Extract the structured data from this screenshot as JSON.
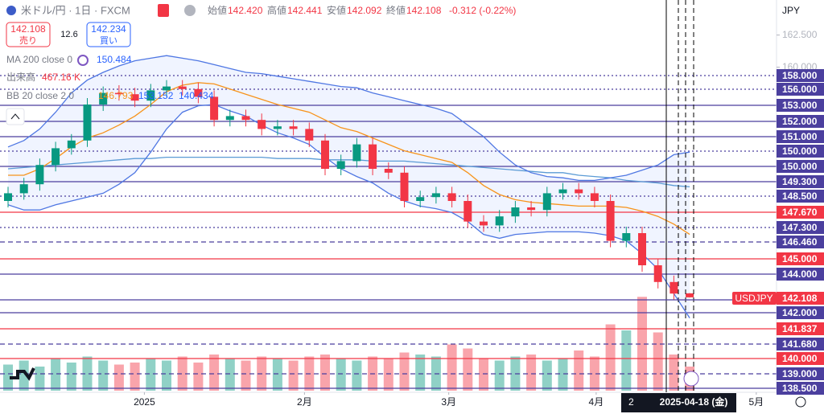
{
  "header": {
    "symbol": "米ドル/円 · 1日 · FXCM",
    "open_label": "始値",
    "open": "142.420",
    "high_label": "高値",
    "high": "142.441",
    "low_label": "安値",
    "low": "142.092",
    "close_label": "終値",
    "close": "142.108",
    "change": "-0.312 (-0.22%)"
  },
  "trade": {
    "sell_price": "142.108",
    "sell": "売り",
    "spread": "12.6",
    "buy_price": "142.234",
    "buy": "買い"
  },
  "legend": {
    "ma": "MA 200 close 0",
    "ma_value": "150.484",
    "vol": "出来高",
    "vol_value": "467.16 K",
    "bb": "BB 20 close 2 0",
    "bb_basis": "146.793",
    "bb_upper": "153.152",
    "bb_lower": "140.434"
  },
  "currency": "JPY",
  "price_lines": [
    {
      "label": "158.000",
      "color": "#4b3f9e",
      "style": "dotted"
    },
    {
      "label": "156.000",
      "color": "#4b3f9e",
      "style": "dotted"
    },
    {
      "label": "153.000",
      "color": "#4b3f9e",
      "style": "solid"
    },
    {
      "label": "152.000",
      "color": "#4b3f9e",
      "style": "solid"
    },
    {
      "label": "151.000",
      "color": "#4b3f9e",
      "style": "solid"
    },
    {
      "label": "150.000",
      "color": "#4b3f9e",
      "style": "dotted"
    },
    {
      "label": "150.000",
      "color": "#4b3f9e",
      "style": "solid"
    },
    {
      "label": "149.300",
      "color": "#4b3f9e",
      "style": "solid"
    },
    {
      "label": "148.500",
      "color": "#4b3f9e",
      "style": "dotted"
    },
    {
      "label": "147.670",
      "color": "#f23645",
      "style": "solid"
    },
    {
      "label": "147.300",
      "color": "#4b3f9e",
      "style": "dotted"
    },
    {
      "label": "146.460",
      "color": "#4b3f9e",
      "style": "dashed"
    },
    {
      "label": "145.000",
      "color": "#f23645",
      "style": "solid"
    },
    {
      "label": "144.000",
      "color": "#4b3f9e",
      "style": "solid"
    },
    {
      "label": "142.000",
      "color": "#4b3f9e",
      "style": "solid"
    },
    {
      "label": "141.837",
      "color": "#f23645",
      "style": "solid"
    },
    {
      "label": "141.680",
      "color": "#4b3f9e",
      "style": "dashed"
    },
    {
      "label": "140.000",
      "color": "#f23645",
      "style": "solid"
    },
    {
      "label": "139.000",
      "color": "#4b3f9e",
      "style": "dashed"
    },
    {
      "label": "138.500",
      "color": "#4b3f9e",
      "style": "solid"
    }
  ],
  "last_price": {
    "name": "USDJPY",
    "label": "142.108",
    "color": "#f23645"
  },
  "chart_data": {
    "type": "candlestick",
    "categories": [
      null,
      null,
      null,
      null,
      null,
      null,
      null,
      null,
      null,
      null,
      null,
      null,
      null,
      null,
      null,
      null,
      null,
      null,
      null,
      null,
      null,
      null,
      null,
      null,
      null,
      null,
      null,
      null,
      null,
      null,
      null,
      null,
      null,
      null,
      null,
      null,
      null,
      null,
      null,
      null,
      null,
      null,
      null,
      null
    ],
    "open": [
      149.6,
      150.2,
      150.9,
      152.4,
      153.7,
      154.3,
      157.1,
      158.0,
      157.9,
      157.4,
      158.2,
      158.5,
      158.3,
      157.7,
      155.9,
      156.2,
      155.9,
      155.2,
      155.4,
      155.2,
      154.3,
      152.1,
      152.7,
      154.0,
      152.1,
      151.8,
      149.6,
      149.9,
      150.2,
      149.6,
      148.0,
      147.7,
      148.4,
      149.1,
      148.9,
      150.2,
      150.5,
      150.2,
      149.6,
      146.5,
      147.1,
      144.6,
      143.3,
      142.42
    ],
    "high": [
      150.7,
      151.4,
      152.9,
      154.2,
      154.8,
      157.6,
      158.5,
      158.6,
      158.4,
      158.7,
      159.0,
      159.0,
      158.8,
      158.2,
      156.7,
      156.7,
      156.4,
      155.9,
      155.9,
      155.7,
      154.8,
      153.2,
      154.5,
      154.5,
      152.6,
      152.3,
      150.4,
      150.7,
      150.7,
      150.1,
      148.5,
      148.9,
      149.6,
      149.6,
      150.7,
      151.0,
      151.0,
      150.7,
      150.1,
      147.6,
      147.6,
      145.1,
      143.8,
      142.441
    ],
    "low": [
      149.1,
      149.7,
      150.4,
      151.9,
      153.2,
      153.8,
      156.6,
      157.4,
      156.9,
      156.9,
      157.7,
      157.8,
      157.2,
      155.4,
      155.4,
      155.4,
      154.7,
      154.7,
      154.7,
      153.8,
      151.6,
      151.6,
      152.2,
      151.6,
      151.3,
      149.1,
      149.1,
      149.4,
      149.1,
      147.5,
      147.2,
      147.2,
      147.9,
      148.4,
      148.4,
      149.7,
      149.7,
      149.1,
      146.0,
      146.0,
      144.1,
      142.8,
      141.9,
      142.092
    ],
    "close": [
      150.2,
      150.9,
      152.4,
      153.7,
      154.3,
      157.1,
      158.0,
      157.9,
      157.4,
      158.2,
      158.5,
      158.3,
      157.7,
      155.9,
      156.2,
      155.9,
      155.2,
      155.4,
      155.2,
      154.3,
      152.1,
      152.7,
      154.0,
      152.1,
      151.8,
      149.6,
      149.9,
      150.2,
      149.6,
      148.0,
      147.7,
      148.4,
      149.1,
      148.9,
      150.2,
      150.5,
      150.2,
      149.6,
      146.5,
      147.1,
      144.6,
      143.3,
      142.4,
      142.108
    ],
    "volume": [
      130,
      150,
      120,
      160,
      140,
      170,
      150,
      130,
      140,
      160,
      150,
      170,
      140,
      180,
      160,
      150,
      170,
      160,
      150,
      170,
      180,
      160,
      150,
      170,
      160,
      190,
      180,
      170,
      230,
      210,
      160,
      150,
      170,
      180,
      150,
      160,
      200,
      170,
      330,
      300,
      467,
      290,
      180,
      120
    ],
    "up_color": "#089981",
    "down_color": "#f23645",
    "band_fill": "rgba(41,98,255,0.07)",
    "lines": [
      {
        "color": "#5b9bd5",
        "values": [
          152.1,
          152.2,
          152.3,
          152.4,
          152.5,
          152.6,
          152.7,
          152.8,
          152.9,
          152.9,
          153.0,
          153.0,
          153.0,
          153.0,
          153.0,
          153.0,
          153.0,
          152.9,
          152.9,
          152.9,
          152.8,
          152.8,
          152.8,
          152.7,
          152.7,
          152.7,
          152.6,
          152.5,
          152.4,
          152.3,
          152.2,
          152.1,
          152.0,
          151.9,
          151.8,
          151.8,
          151.6,
          151.5,
          151.4,
          151.2,
          151.1,
          151.0,
          150.8,
          150.7
        ]
      },
      {
        "color": "#f7931a",
        "values": [
          151.6,
          151.6,
          152.1,
          152.9,
          153.8,
          154.5,
          154.9,
          155.5,
          156.2,
          157.1,
          158.1,
          158.6,
          158.8,
          158.7,
          158.3,
          157.9,
          157.5,
          157.1,
          156.8,
          156.5,
          155.9,
          155.3,
          155.0,
          154.5,
          154.0,
          153.5,
          153.2,
          152.9,
          152.6,
          151.8,
          150.8,
          150.1,
          149.7,
          149.5,
          149.4,
          149.3,
          149.2,
          149.2,
          149.2,
          149.1,
          148.8,
          148.4,
          147.8,
          147.0
        ]
      },
      {
        "color": "#4f77e3",
        "values": [
          153.8,
          154.3,
          155.2,
          156.5,
          158.0,
          159.0,
          159.6,
          160.1,
          160.5,
          160.7,
          160.9,
          160.7,
          160.5,
          160.2,
          159.9,
          159.6,
          159.5,
          159.3,
          159.1,
          158.9,
          158.7,
          158.5,
          158.4,
          158.0,
          157.7,
          157.4,
          157.1,
          156.8,
          156.4,
          155.5,
          154.6,
          153.4,
          152.4,
          151.8,
          151.5,
          151.4,
          151.2,
          151.2,
          151.4,
          151.6,
          152.0,
          152.4,
          153.2,
          153.4
        ]
      },
      {
        "color": "#4f77e3",
        "values": [
          149.3,
          148.9,
          148.9,
          149.3,
          149.6,
          149.9,
          150.2,
          150.9,
          151.8,
          153.4,
          155.2,
          156.5,
          157.0,
          157.1,
          156.6,
          156.2,
          155.5,
          154.9,
          154.5,
          154.0,
          153.0,
          152.1,
          151.5,
          151.0,
          150.2,
          149.6,
          149.2,
          149.0,
          148.7,
          148.0,
          147.0,
          146.7,
          147.0,
          147.1,
          147.2,
          147.2,
          147.2,
          147.1,
          146.9,
          146.5,
          145.5,
          144.3,
          142.4,
          140.5
        ]
      }
    ],
    "ylim": [
      134.725,
      165.225
    ],
    "yticks": [
      {
        "value": 162.5,
        "label": "162.500"
      },
      {
        "value": 160,
        "label": "160.000"
      }
    ],
    "xticks": [
      {
        "value": 8.6,
        "label": "2025"
      },
      {
        "value": 18.7,
        "label": "2月"
      },
      {
        "value": 27.8,
        "label": "3月"
      },
      {
        "value": 37.1,
        "label": "4月"
      },
      {
        "value": 47.2,
        "label": "5月"
      }
    ],
    "crosshair_label": "2025-04-18 (金)",
    "crosshair_partial": "2"
  }
}
